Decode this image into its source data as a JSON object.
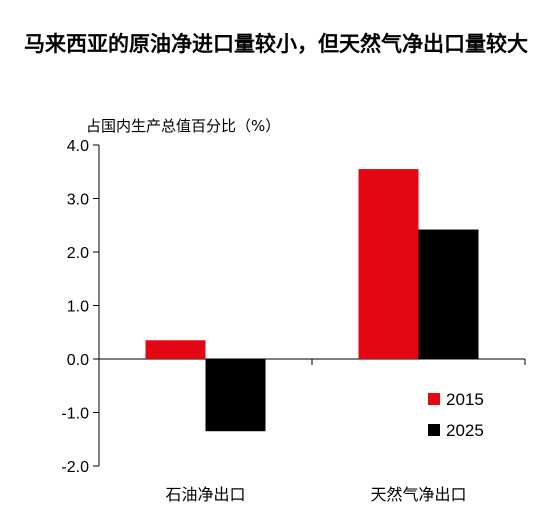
{
  "chart_data": {
    "type": "bar",
    "title": "马来西亚的原油净进口量较小，但天然气净出口量较大",
    "ylabel": "占国内生产总值百分比（%）",
    "xlabel": "",
    "categories": [
      "石油净出口",
      "天然气净出口"
    ],
    "series": [
      {
        "name": "2015",
        "values": [
          0.35,
          3.55
        ],
        "color": "#e30613"
      },
      {
        "name": "2025",
        "values": [
          -1.35,
          2.42
        ],
        "color": "#000000"
      }
    ],
    "ylim": [
      -2.0,
      4.0
    ],
    "yticks": [
      "-2.0",
      "-1.0",
      "0.0",
      "1.0",
      "2.0",
      "3.0",
      "4.0"
    ],
    "grid": false,
    "legend_position": "bottom-right"
  }
}
